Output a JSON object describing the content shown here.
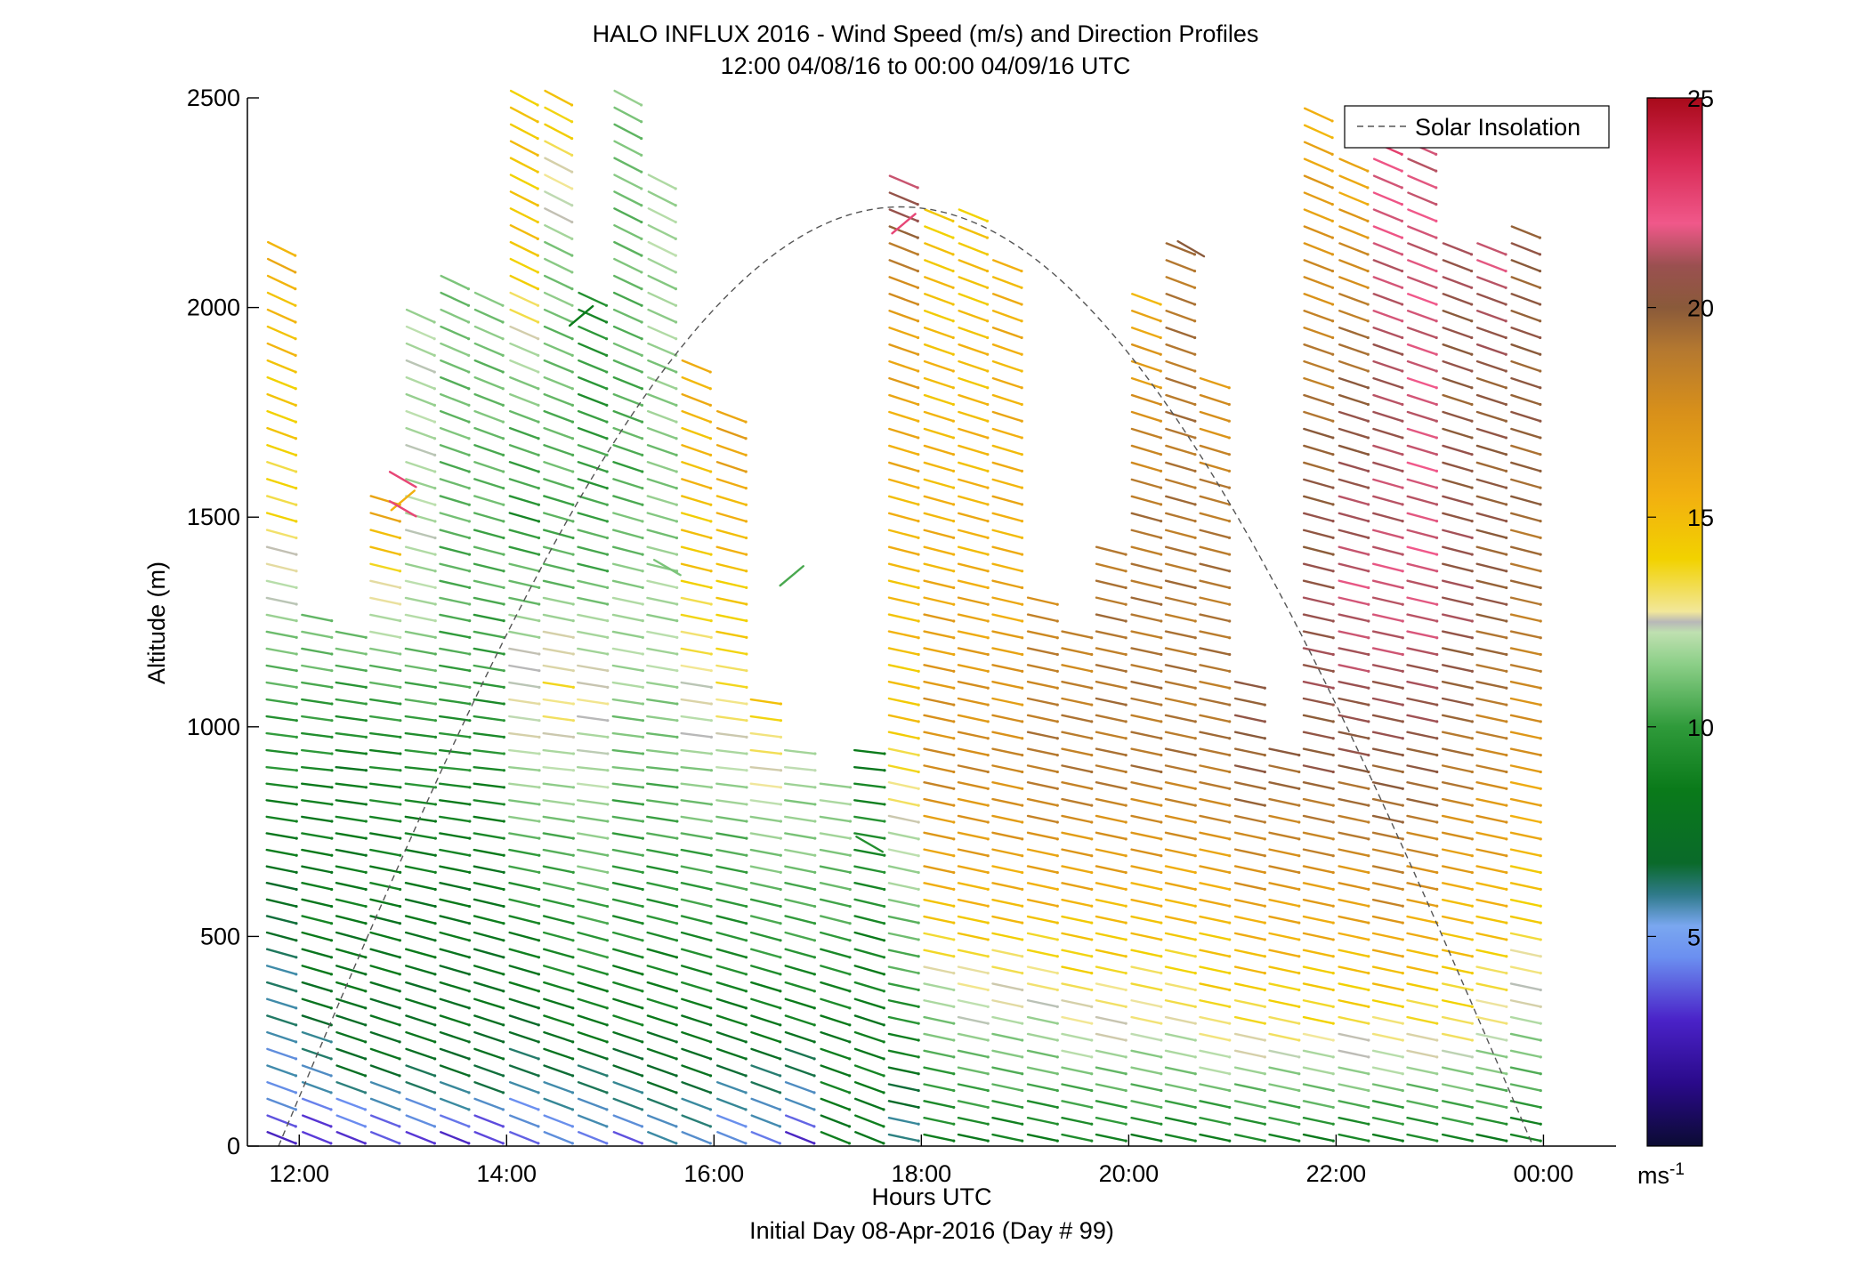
{
  "title": {
    "line1": "HALO INFLUX 2016 - Wind Speed (m/s) and Direction Profiles",
    "line2": "12:00 04/08/16 to 00:00 04/09/16  UTC"
  },
  "chart_data": {
    "type": "wind-barb profile",
    "xlabel": "Hours UTC",
    "xlabel2": "Initial Day 08-Apr-2016 (Day # 99)",
    "ylabel": "Altitude (m)",
    "xlim": [
      11.5,
      24.7
    ],
    "ylim": [
      0,
      2500
    ],
    "x_ticks": [
      {
        "value": 12,
        "label": "12:00"
      },
      {
        "value": 14,
        "label": "14:00"
      },
      {
        "value": 16,
        "label": "16:00"
      },
      {
        "value": 18,
        "label": "18:00"
      },
      {
        "value": 20,
        "label": "20:00"
      },
      {
        "value": 22,
        "label": "22:00"
      },
      {
        "value": 24,
        "label": "00:00"
      }
    ],
    "y_ticks": [
      {
        "value": 0,
        "label": "0"
      },
      {
        "value": 500,
        "label": "500"
      },
      {
        "value": 1000,
        "label": "1000"
      },
      {
        "value": 1500,
        "label": "1500"
      },
      {
        "value": 2000,
        "label": "2000"
      },
      {
        "value": 2500,
        "label": "2500"
      }
    ],
    "legend": {
      "label": "Solar Insolation",
      "placement": "top-right"
    },
    "solar_insolation": {
      "start_hour": 11.8,
      "peak_hour": 17.8,
      "end_hour": 23.9,
      "peak_altitude": 2240
    },
    "colorbar": {
      "range": [
        0,
        25
      ],
      "ticks": [
        {
          "value": 5,
          "label": "5"
        },
        {
          "value": 10,
          "label": "10"
        },
        {
          "value": 15,
          "label": "15"
        },
        {
          "value": 20,
          "label": "20"
        },
        {
          "value": 25,
          "label": "25"
        }
      ],
      "unit_base": "ms",
      "unit_exp": "-1"
    },
    "grid": false,
    "profiles": [
      {
        "hour": 11.83,
        "max_alt": 2140,
        "spd": [
          [
            0,
            3
          ],
          [
            150,
            5
          ],
          [
            450,
            6
          ],
          [
            750,
            8
          ],
          [
            1100,
            10
          ],
          [
            1300,
            12
          ],
          [
            1500,
            14
          ],
          [
            1800,
            15
          ],
          [
            2140,
            16
          ]
        ]
      },
      {
        "hour": 12.17,
        "max_alt": 1260,
        "spd": [
          [
            0,
            3
          ],
          [
            150,
            5
          ],
          [
            450,
            8
          ],
          [
            800,
            8
          ],
          [
            1100,
            10
          ],
          [
            1260,
            11
          ]
        ]
      },
      {
        "hour": 12.5,
        "max_alt": 1250,
        "spd": [
          [
            0,
            3
          ],
          [
            200,
            7
          ],
          [
            600,
            8
          ],
          [
            900,
            8
          ],
          [
            1250,
            11
          ]
        ]
      },
      {
        "hour": 12.83,
        "max_alt": 1540,
        "spd": [
          [
            0,
            3
          ],
          [
            200,
            7
          ],
          [
            600,
            8
          ],
          [
            1000,
            9
          ],
          [
            1250,
            12
          ],
          [
            1540,
            17
          ]
        ]
      },
      {
        "hour": 13.17,
        "max_alt": 1980,
        "spd": [
          [
            0,
            3
          ],
          [
            200,
            7
          ],
          [
            700,
            8
          ],
          [
            1100,
            10
          ],
          [
            1300,
            12
          ],
          [
            1980,
            12
          ]
        ]
      },
      {
        "hour": 13.5,
        "max_alt": 2060,
        "spd": [
          [
            0,
            3
          ],
          [
            200,
            7
          ],
          [
            700,
            8
          ],
          [
            1200,
            10
          ],
          [
            2060,
            11
          ]
        ]
      },
      {
        "hour": 13.83,
        "max_alt": 2040,
        "spd": [
          [
            0,
            3
          ],
          [
            200,
            7
          ],
          [
            700,
            8
          ],
          [
            1300,
            10
          ],
          [
            2040,
            11
          ]
        ]
      },
      {
        "hour": 14.17,
        "max_alt": 2500,
        "spd": [
          [
            0,
            4
          ],
          [
            300,
            7
          ],
          [
            600,
            9
          ],
          [
            900,
            12
          ],
          [
            1100,
            13
          ],
          [
            1500,
            9
          ],
          [
            1800,
            11
          ],
          [
            2100,
            15
          ],
          [
            2500,
            15
          ]
        ]
      },
      {
        "hour": 14.5,
        "max_alt": 2500,
        "spd": [
          [
            0,
            4
          ],
          [
            300,
            8
          ],
          [
            700,
            10
          ],
          [
            1100,
            14
          ],
          [
            1400,
            10
          ],
          [
            2100,
            11
          ],
          [
            2500,
            15
          ]
        ]
      },
      {
        "hour": 14.83,
        "max_alt": 2040,
        "spd": [
          [
            0,
            4
          ],
          [
            300,
            8
          ],
          [
            700,
            11
          ],
          [
            1100,
            13
          ],
          [
            1400,
            10
          ],
          [
            2040,
            9
          ]
        ]
      },
      {
        "hour": 15.17,
        "max_alt": 2500,
        "spd": [
          [
            0,
            4
          ],
          [
            300,
            8
          ],
          [
            800,
            10
          ],
          [
            1200,
            12
          ],
          [
            1600,
            10
          ],
          [
            2500,
            11
          ]
        ]
      },
      {
        "hour": 15.5,
        "max_alt": 2330,
        "spd": [
          [
            0,
            5
          ],
          [
            300,
            8
          ],
          [
            800,
            10
          ],
          [
            1200,
            12
          ],
          [
            1550,
            11
          ],
          [
            2330,
            12
          ]
        ]
      },
      {
        "hour": 15.83,
        "max_alt": 1880,
        "spd": [
          [
            0,
            5
          ],
          [
            300,
            8
          ],
          [
            700,
            10
          ],
          [
            1100,
            13
          ],
          [
            1400,
            15
          ],
          [
            1880,
            16
          ]
        ]
      },
      {
        "hour": 16.17,
        "max_alt": 1760,
        "spd": [
          [
            0,
            4
          ],
          [
            300,
            8
          ],
          [
            700,
            10
          ],
          [
            1100,
            14
          ],
          [
            1760,
            17
          ]
        ]
      },
      {
        "hour": 16.5,
        "max_alt": 1080,
        "spd": [
          [
            0,
            4
          ],
          [
            300,
            8
          ],
          [
            700,
            11
          ],
          [
            1080,
            15
          ]
        ]
      },
      {
        "hour": 16.83,
        "max_alt": 940,
        "spd": [
          [
            0,
            3
          ],
          [
            300,
            8
          ],
          [
            700,
            11
          ],
          [
            940,
            12
          ]
        ]
      },
      {
        "hour": 17.17,
        "max_alt": 880,
        "spd": [
          [
            0,
            8
          ],
          [
            300,
            8
          ],
          [
            700,
            11
          ],
          [
            880,
            12
          ]
        ]
      },
      {
        "hour": 17.5,
        "max_alt": 950,
        "spd": [
          [
            0,
            8
          ],
          [
            300,
            8
          ],
          [
            700,
            9
          ],
          [
            950,
            8
          ]
        ]
      },
      {
        "hour": 17.83,
        "max_alt": 2330,
        "spd": [
          [
            0,
            5
          ],
          [
            300,
            9
          ],
          [
            700,
            12
          ],
          [
            1000,
            15
          ],
          [
            1600,
            16
          ],
          [
            2000,
            17
          ],
          [
            2330,
            22
          ]
        ]
      },
      {
        "hour": 18.17,
        "max_alt": 2220,
        "spd": [
          [
            0,
            8
          ],
          [
            300,
            11
          ],
          [
            600,
            16
          ],
          [
            900,
            18
          ],
          [
            1400,
            16
          ],
          [
            2220,
            15
          ]
        ]
      },
      {
        "hour": 18.5,
        "max_alt": 2230,
        "spd": [
          [
            0,
            8
          ],
          [
            300,
            12
          ],
          [
            600,
            16
          ],
          [
            900,
            18
          ],
          [
            1400,
            16
          ],
          [
            2230,
            15
          ]
        ]
      },
      {
        "hour": 18.83,
        "max_alt": 2120,
        "spd": [
          [
            0,
            8
          ],
          [
            300,
            12
          ],
          [
            600,
            16
          ],
          [
            900,
            18
          ],
          [
            1400,
            16
          ],
          [
            2120,
            16
          ]
        ]
      },
      {
        "hour": 19.17,
        "max_alt": 1330,
        "spd": [
          [
            0,
            8
          ],
          [
            300,
            12
          ],
          [
            600,
            16
          ],
          [
            900,
            19
          ],
          [
            1330,
            18
          ]
        ]
      },
      {
        "hour": 19.5,
        "max_alt": 1250,
        "spd": [
          [
            0,
            8
          ],
          [
            300,
            13
          ],
          [
            600,
            16
          ],
          [
            900,
            19
          ],
          [
            1250,
            18
          ]
        ]
      },
      {
        "hour": 19.83,
        "max_alt": 1420,
        "spd": [
          [
            0,
            8
          ],
          [
            300,
            13
          ],
          [
            600,
            16
          ],
          [
            900,
            19
          ],
          [
            1420,
            19
          ]
        ]
      },
      {
        "hour": 20.17,
        "max_alt": 2050,
        "spd": [
          [
            0,
            8
          ],
          [
            300,
            13
          ],
          [
            600,
            16
          ],
          [
            900,
            19
          ],
          [
            1500,
            19
          ],
          [
            2050,
            16
          ]
        ]
      },
      {
        "hour": 20.5,
        "max_alt": 2160,
        "spd": [
          [
            0,
            8
          ],
          [
            300,
            13
          ],
          [
            600,
            16
          ],
          [
            900,
            19
          ],
          [
            1500,
            19
          ],
          [
            2160,
            19
          ]
        ]
      },
      {
        "hour": 20.83,
        "max_alt": 1840,
        "spd": [
          [
            0,
            8
          ],
          [
            300,
            14
          ],
          [
            600,
            16
          ],
          [
            900,
            19
          ],
          [
            1500,
            19
          ],
          [
            1840,
            17
          ]
        ]
      },
      {
        "hour": 21.17,
        "max_alt": 1110,
        "spd": [
          [
            0,
            8
          ],
          [
            300,
            14
          ],
          [
            600,
            17
          ],
          [
            900,
            20
          ],
          [
            1110,
            20
          ]
        ]
      },
      {
        "hour": 21.5,
        "max_alt": 960,
        "spd": [
          [
            0,
            8
          ],
          [
            300,
            14
          ],
          [
            600,
            17
          ],
          [
            960,
            20
          ]
        ]
      },
      {
        "hour": 21.83,
        "max_alt": 2470,
        "spd": [
          [
            0,
            8
          ],
          [
            300,
            14
          ],
          [
            600,
            17
          ],
          [
            900,
            20
          ],
          [
            1200,
            21
          ],
          [
            1600,
            20
          ],
          [
            2000,
            18
          ],
          [
            2470,
            16
          ]
        ]
      },
      {
        "hour": 22.17,
        "max_alt": 2350,
        "spd": [
          [
            0,
            8
          ],
          [
            300,
            14
          ],
          [
            600,
            17
          ],
          [
            900,
            20
          ],
          [
            1300,
            22
          ],
          [
            1800,
            20
          ],
          [
            2350,
            16
          ]
        ]
      },
      {
        "hour": 22.5,
        "max_alt": 2480,
        "spd": [
          [
            0,
            8
          ],
          [
            300,
            14
          ],
          [
            600,
            18
          ],
          [
            900,
            20
          ],
          [
            1300,
            22
          ],
          [
            1800,
            21
          ],
          [
            2480,
            23
          ]
        ]
      },
      {
        "hour": 22.83,
        "max_alt": 2470,
        "spd": [
          [
            0,
            8
          ],
          [
            300,
            14
          ],
          [
            600,
            17
          ],
          [
            900,
            20
          ],
          [
            1300,
            22
          ],
          [
            1800,
            22
          ],
          [
            2470,
            22
          ]
        ]
      },
      {
        "hour": 23.17,
        "max_alt": 2140,
        "spd": [
          [
            0,
            8
          ],
          [
            300,
            14
          ],
          [
            600,
            16
          ],
          [
            900,
            19
          ],
          [
            1300,
            21
          ],
          [
            1800,
            20
          ],
          [
            2140,
            21
          ]
        ]
      },
      {
        "hour": 23.5,
        "max_alt": 2140,
        "spd": [
          [
            0,
            8
          ],
          [
            300,
            13
          ],
          [
            600,
            16
          ],
          [
            900,
            18
          ],
          [
            1300,
            20
          ],
          [
            1800,
            20
          ],
          [
            2140,
            22
          ]
        ]
      },
      {
        "hour": 23.83,
        "max_alt": 2190,
        "spd": [
          [
            0,
            8
          ],
          [
            300,
            12
          ],
          [
            600,
            15
          ],
          [
            900,
            17
          ],
          [
            1300,
            19
          ],
          [
            1800,
            20
          ],
          [
            2190,
            20
          ]
        ]
      }
    ],
    "direction_tilt_deg": [
      [
        0,
        22
      ],
      [
        500,
        15
      ],
      [
        900,
        6
      ],
      [
        1300,
        12
      ],
      [
        1700,
        20
      ],
      [
        2100,
        26
      ],
      [
        2500,
        28
      ]
    ],
    "direction_tilt_later_deg": 12,
    "isolated_barbs": [
      {
        "hour": 13.0,
        "alt": 1590,
        "spd": 23
      },
      {
        "hour": 13.0,
        "alt": 1540,
        "spd": 16
      },
      {
        "hour": 13.0,
        "alt": 1520,
        "spd": 23
      },
      {
        "hour": 14.72,
        "alt": 1980,
        "spd": 8
      },
      {
        "hour": 15.55,
        "alt": 1380,
        "spd": 11
      },
      {
        "hour": 16.75,
        "alt": 1360,
        "spd": 10
      },
      {
        "hour": 17.5,
        "alt": 720,
        "spd": 9
      },
      {
        "hour": 17.83,
        "alt": 2200,
        "spd": 23
      },
      {
        "hour": 20.6,
        "alt": 2140,
        "spd": 20
      }
    ]
  }
}
